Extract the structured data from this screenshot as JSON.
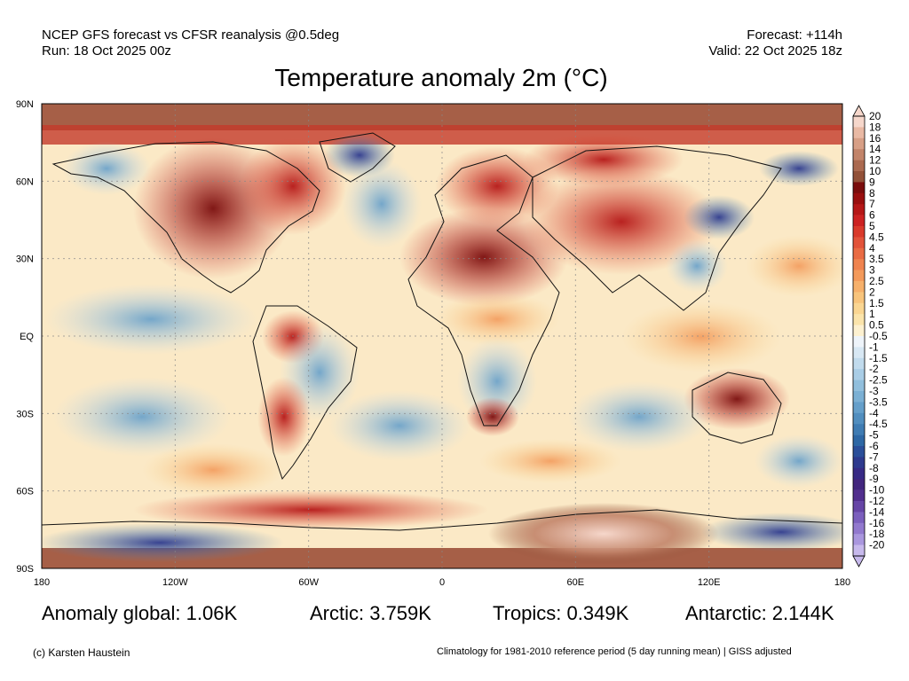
{
  "header": {
    "line1_left": "NCEP GFS forecast vs CFSR reanalysis @0.5deg",
    "line2_left": "Run: 18 Oct 2025 00z",
    "line1_right": "Forecast: +114h",
    "line2_right": "Valid: 22 Oct 2025 18z"
  },
  "title": "Temperature anomaly 2m (°C)",
  "axes": {
    "lat_labels": [
      "90N",
      "60N",
      "30N",
      "EQ",
      "30S",
      "60S",
      "90S"
    ],
    "lon_labels": [
      "180",
      "120W",
      "60W",
      "0",
      "60E",
      "120E",
      "180"
    ]
  },
  "colorbar": {
    "labels": [
      "20",
      "18",
      "16",
      "14",
      "12",
      "10",
      "9",
      "8",
      "7",
      "6",
      "5",
      "4.5",
      "4",
      "3.5",
      "3",
      "2.5",
      "2",
      "1.5",
      "1",
      "0.5",
      "-0.5",
      "-1",
      "-1.5",
      "-2",
      "-2.5",
      "-3",
      "-3.5",
      "-4",
      "-4.5",
      "-5",
      "-6",
      "-7",
      "-8",
      "-9",
      "-10",
      "-12",
      "-14",
      "-16",
      "-18",
      "-20"
    ],
    "colors": [
      "#f6d7cb",
      "#e9b9a4",
      "#d79f86",
      "#c2846a",
      "#ab6a50",
      "#925138",
      "#7a0d0d",
      "#990f0f",
      "#b51717",
      "#cc2222",
      "#d93a2b",
      "#e2533a",
      "#e96b44",
      "#ef834f",
      "#f39a5b",
      "#f6b06b",
      "#f8c47c",
      "#fad692",
      "#fbe4ab",
      "#fdf1d0",
      "#eef4fa",
      "#d8e8f4",
      "#c1dbed",
      "#a9cde6",
      "#91bfdd",
      "#7bb0d4",
      "#659fca",
      "#518ebf",
      "#3f7cb3",
      "#2e68a5",
      "#2b4f9a",
      "#2e3a8e",
      "#372a85",
      "#42267e",
      "#522f8e",
      "#6645a6",
      "#7b5fbd",
      "#9279ce",
      "#aa97de",
      "#c7b9ec"
    ]
  },
  "stats": {
    "global": "Anomaly global: 1.06K",
    "arctic": "Arctic: 3.759K",
    "tropics": "Tropics: 0.349K",
    "antarctic": "Antarctic: 2.144K"
  },
  "footer": {
    "left": "(c) Karsten Haustein",
    "right": "Climatology for 1981-2010 reference period (5 day running mean) | GISS adjusted"
  }
}
